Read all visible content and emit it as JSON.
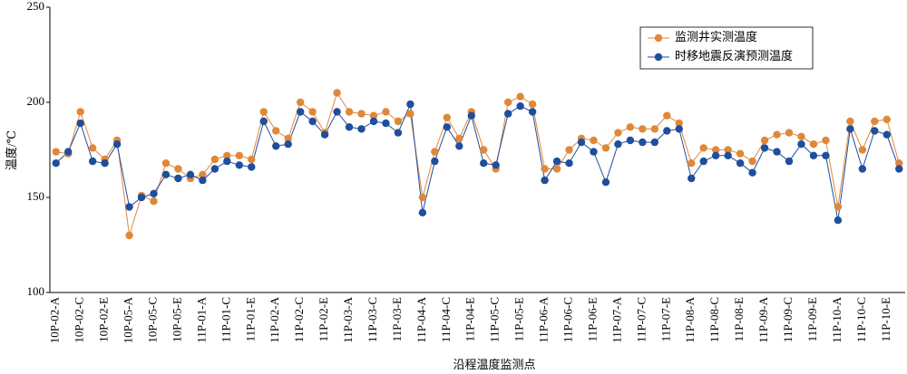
{
  "chart_data": {
    "type": "line",
    "xlabel": "沿程温度监测点",
    "ylabel": "温度/℃",
    "categories": [
      "10P-02-A",
      null,
      "10P-02-C",
      null,
      "10P-02-E",
      null,
      "10P-05-A",
      null,
      "10P-05-C",
      null,
      "10P-05-E",
      null,
      "11P-01-A",
      null,
      "11P-01-C",
      null,
      "11P-01-E",
      null,
      "11P-02-A",
      null,
      "11P-02-C",
      null,
      "11P-02-E",
      null,
      "11P-03-A",
      null,
      "11P-03-C",
      null,
      "11P-03-E",
      null,
      "11P-04-A",
      null,
      "11P-04-C",
      null,
      "11P-04-E",
      null,
      "11P-05-C",
      null,
      "11P-05-E",
      null,
      "11P-06-A",
      null,
      "11P-06-C",
      null,
      "11P-06-E",
      null,
      "11P-07-A",
      null,
      "11P-07-C",
      null,
      "11P-07-E",
      null,
      "11P-08-A",
      null,
      "11P-08-C",
      null,
      "11P-08-E",
      null,
      "11P-09-A",
      null,
      "11P-09-C",
      null,
      "11P-09-E",
      null,
      "11P-10-A",
      null,
      "11P-10-C",
      null,
      "11P-10-E",
      null
    ],
    "series": [
      {
        "name": "监测井实测温度",
        "color": "#e0883a",
        "values": [
          174,
          173,
          195,
          176,
          170,
          180,
          130,
          151,
          148,
          168,
          165,
          160,
          162,
          170,
          172,
          172,
          170,
          195,
          185,
          181,
          200,
          195,
          184,
          205,
          195,
          194,
          193,
          195,
          190,
          194,
          150,
          174,
          192,
          181,
          195,
          175,
          165,
          200,
          203,
          199,
          165,
          165,
          175,
          181,
          180,
          176,
          184,
          187,
          186,
          186,
          193,
          189,
          168,
          176,
          175,
          175,
          173,
          169,
          180,
          183,
          184,
          182,
          178,
          180,
          145,
          190,
          175,
          190,
          191,
          168
        ]
      },
      {
        "name": "时移地震反演预测温度",
        "color": "#1f4e9c",
        "values": [
          168,
          174,
          189,
          169,
          168,
          178,
          145,
          150,
          152,
          162,
          160,
          162,
          159,
          165,
          169,
          167,
          166,
          190,
          177,
          178,
          195,
          190,
          183,
          195,
          187,
          186,
          190,
          189,
          184,
          199,
          142,
          169,
          187,
          177,
          193,
          168,
          167,
          194,
          198,
          195,
          159,
          169,
          168,
          179,
          174,
          158,
          178,
          180,
          179,
          179,
          185,
          186,
          160,
          169,
          172,
          172,
          168,
          163,
          176,
          174,
          169,
          178,
          172,
          172,
          138,
          186,
          165,
          185,
          183,
          165
        ]
      }
    ],
    "ylim": [
      100,
      250
    ],
    "yticks": [
      100,
      150,
      200,
      250
    ],
    "legend": "upper right"
  }
}
